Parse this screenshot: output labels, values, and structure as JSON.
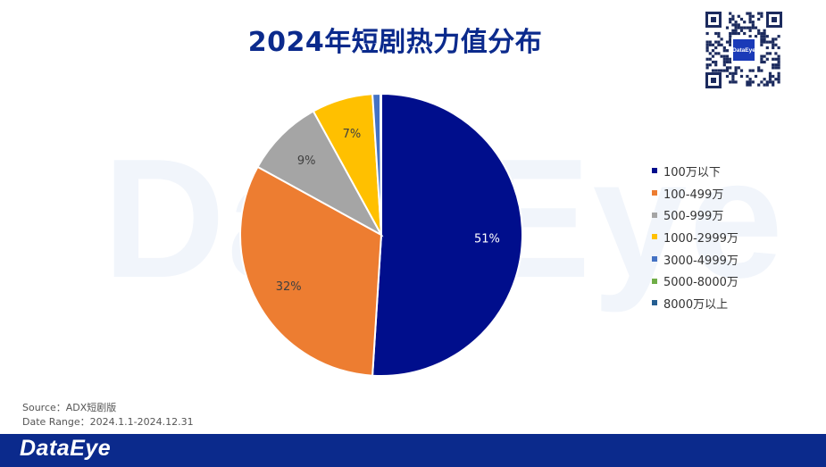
{
  "watermark": "DataEye",
  "chart_data": {
    "type": "pie",
    "title": "2024年短剧热力值分布",
    "slices": [
      {
        "label": "100万以下",
        "value": 51,
        "display": "51%",
        "color": "#000e8c"
      },
      {
        "label": "100-499万",
        "value": 32,
        "display": "32%",
        "color": "#ed7d31"
      },
      {
        "label": "500-999万",
        "value": 9,
        "display": "9%",
        "color": "#a5a5a5"
      },
      {
        "label": "1000-2999万",
        "value": 7,
        "display": "7%",
        "color": "#ffc000"
      },
      {
        "label": "3000-4999万",
        "value": 0.9,
        "display": "",
        "color": "#4472c4"
      },
      {
        "label": "5000-8000万",
        "value": 0.05,
        "display": "",
        "color": "#70ad47"
      },
      {
        "label": "8000万以上",
        "value": 0.05,
        "display": "",
        "color": "#255e91"
      }
    ],
    "start_angle": "12 o'clock",
    "direction": "clockwise",
    "legend_position": "right"
  },
  "source": {
    "line1": "Source：ADX短剧版",
    "line2": "Date Range：2024.1.1-2024.12.31"
  },
  "qr_code": {
    "center_text": "DataEye"
  },
  "footer": {
    "logo": "DataEye",
    "background": "#0b2a8c"
  }
}
